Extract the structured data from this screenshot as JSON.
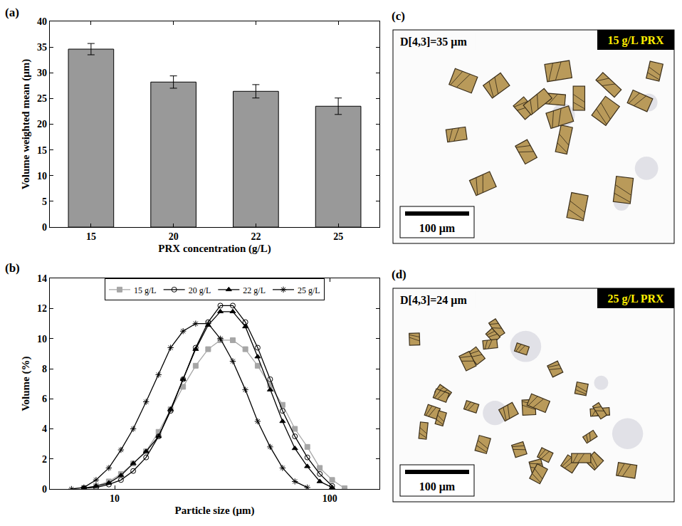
{
  "chart_data": [
    {
      "type": "bar",
      "title": "(a)",
      "categories": [
        "15",
        "20",
        "22",
        "25"
      ],
      "values": [
        34.6,
        28.2,
        26.4,
        23.5
      ],
      "errors": [
        1.1,
        1.2,
        1.3,
        1.6
      ],
      "color": "#999999",
      "x_label": "PRX concentration (g/L)",
      "y_label": "Volume weighted mean (μm)",
      "ylim": [
        0,
        40
      ],
      "yticks": [
        0,
        5,
        10,
        15,
        20,
        25,
        30,
        35,
        40
      ],
      "grid": false
    },
    {
      "type": "line",
      "title": "(b)",
      "x": [
        6.3,
        7.2,
        8.2,
        9.4,
        10.7,
        12.2,
        14.0,
        16.0,
        18.2,
        20.8,
        23.8,
        27.2,
        31.0,
        35.4,
        40.5,
        46.2,
        52.8,
        60.3,
        68.8,
        78.6,
        89.8,
        102.5,
        117.1
      ],
      "series": [
        {
          "name": "15 g/L",
          "color": "#a6a6a6",
          "marker": "square",
          "line_style": "solid",
          "values": [
            null,
            0.05,
            0.2,
            0.5,
            1.0,
            1.7,
            2.5,
            3.8,
            5.3,
            6.8,
            8.2,
            9.3,
            9.9,
            9.9,
            9.3,
            8.2,
            6.9,
            5.6,
            4.0,
            2.8,
            1.4,
            0.6,
            0.05
          ]
        },
        {
          "name": "20 g/L",
          "color": "#000000",
          "marker": "circle-open",
          "line_style": "solid",
          "values": [
            null,
            0.05,
            0.1,
            0.3,
            0.6,
            1.2,
            2.1,
            3.5,
            5.2,
            7.3,
            9.4,
            11.1,
            12.2,
            12.2,
            11.1,
            9.4,
            7.3,
            5.2,
            3.5,
            2.1,
            1.0,
            0.2,
            null
          ]
        },
        {
          "name": "22 g/L",
          "color": "#000000",
          "marker": "triangle-up",
          "line_style": "solid",
          "values": [
            null,
            0.05,
            0.2,
            0.4,
            0.9,
            1.7,
            2.5,
            3.5,
            5.3,
            7.3,
            9.3,
            10.9,
            11.8,
            11.8,
            10.8,
            8.8,
            6.6,
            4.5,
            2.7,
            1.5,
            0.5,
            0.1,
            null
          ]
        },
        {
          "name": "25 g/L",
          "color": "#000000",
          "marker": "asterisk",
          "line_style": "solid",
          "values": [
            0.0,
            0.1,
            0.6,
            1.4,
            2.6,
            4.0,
            5.8,
            7.6,
            9.4,
            10.5,
            11.0,
            11.0,
            10.0,
            8.5,
            6.6,
            4.5,
            2.8,
            1.4,
            0.5,
            0.1,
            null,
            null,
            null
          ]
        }
      ],
      "x_label": "Particle size (μm)",
      "y_label": "Volume (%)",
      "log": "x",
      "xlim": [
        5,
        170
      ],
      "xticks": [
        10,
        100
      ],
      "ylim": [
        0,
        14
      ],
      "yticks": [
        0,
        2,
        4,
        6,
        8,
        10,
        12,
        14
      ],
      "legend": "top",
      "grid": false
    }
  ],
  "images": [
    {
      "letter": "(c)",
      "caption": "D[4,3]=35 μm",
      "tag": "15 g/L PRX",
      "scale_bar": "100 μm"
    },
    {
      "letter": "(d)",
      "caption": "D[4,3]=24 μm",
      "tag": "25 g/L PRX",
      "scale_bar": "100 μm"
    }
  ]
}
